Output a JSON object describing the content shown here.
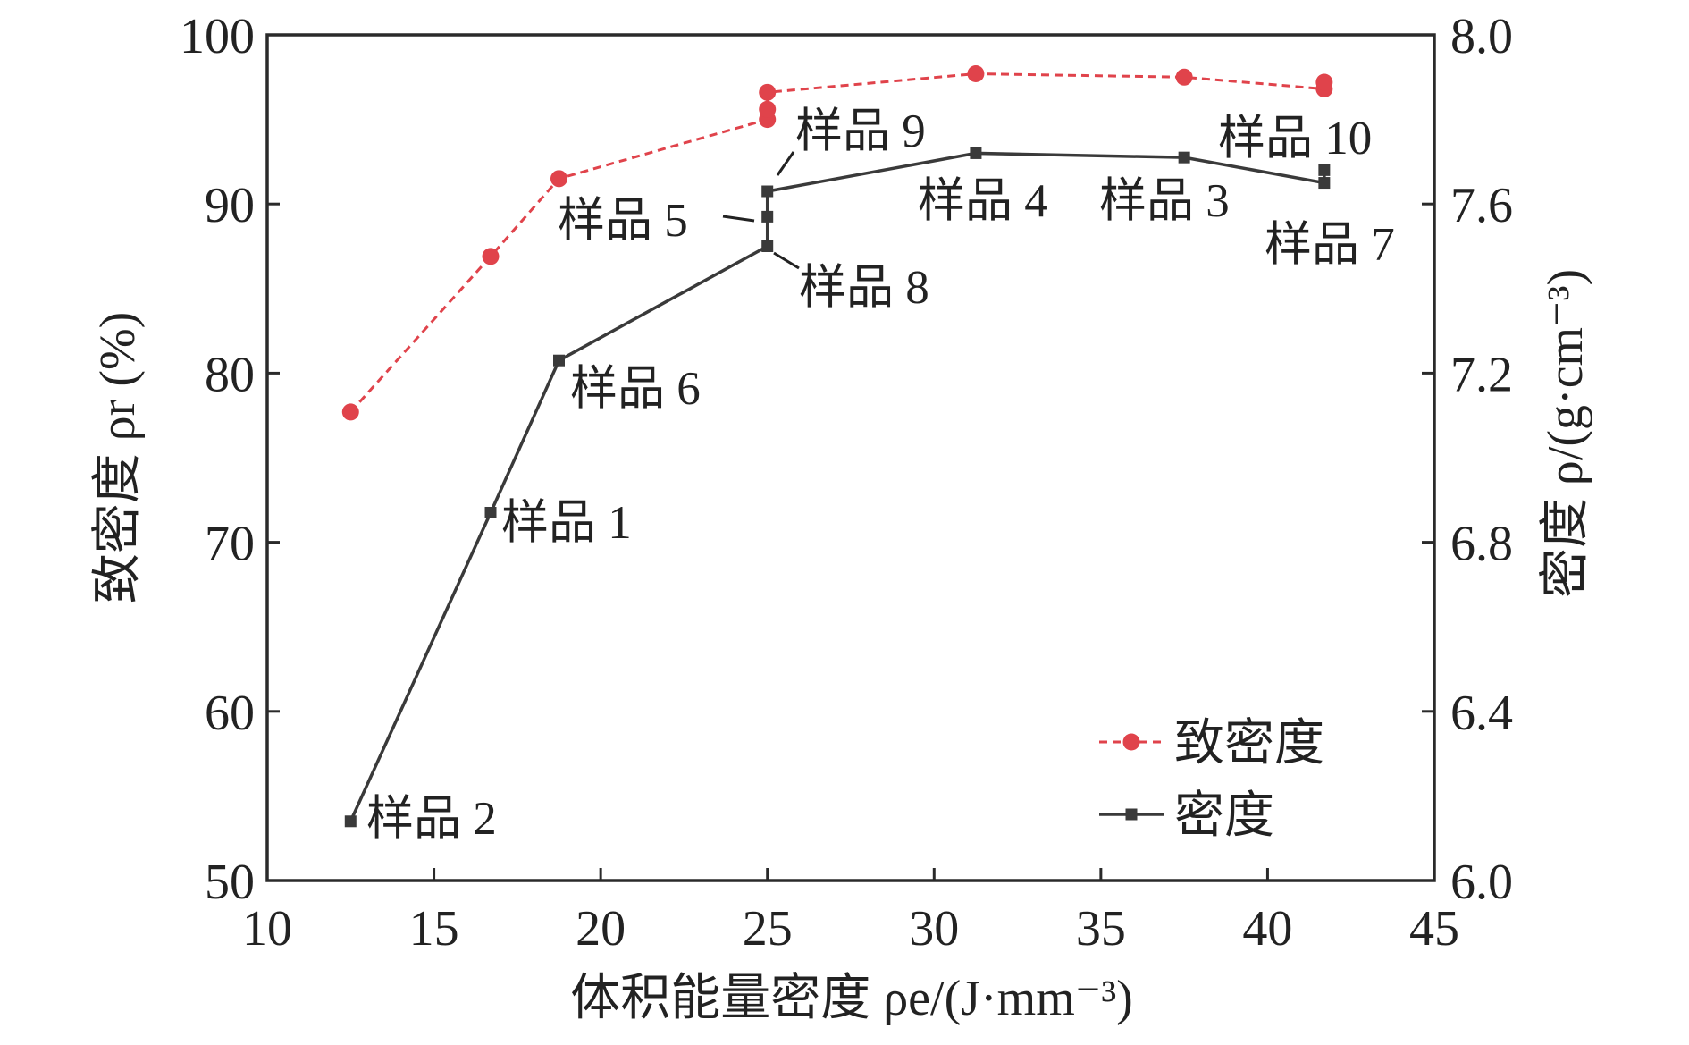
{
  "chart_data": {
    "type": "line",
    "xlabel": "体积能量密度 ρe/(J·mm⁻³)",
    "ylabel_left": "致密度 ρr (%)",
    "ylabel_right": "密度 ρ/(g·cm⁻³)",
    "xlim": [
      10,
      45
    ],
    "ylim_left": [
      50,
      100
    ],
    "ylim_right": [
      6.0,
      8.0
    ],
    "x_ticks": [
      "10",
      "15",
      "20",
      "25",
      "30",
      "35",
      "40",
      "45"
    ],
    "y_left_ticks": [
      "50",
      "60",
      "70",
      "80",
      "90",
      "100"
    ],
    "y_right_ticks": [
      "6.0",
      "6.4",
      "6.8",
      "7.2",
      "7.6",
      "8.0"
    ],
    "legend_position": "bottom-right",
    "colors": {
      "relative_density": "#e0434b",
      "density": "#3a3a3a"
    },
    "series": [
      {
        "name": "致密度",
        "axis": "left",
        "style": "dashed-circle",
        "points": [
          [
            12.5,
            77.7
          ],
          [
            16.7,
            86.9
          ],
          [
            18.75,
            91.5
          ],
          [
            25,
            95.0
          ],
          [
            25,
            95.6
          ],
          [
            25,
            96.6
          ],
          [
            31.25,
            97.7
          ],
          [
            37.5,
            97.5
          ],
          [
            41.7,
            96.8
          ],
          [
            41.7,
            97.2
          ]
        ]
      },
      {
        "name": "密度",
        "axis": "right",
        "style": "solid-square",
        "points": [
          [
            12.5,
            6.14
          ],
          [
            16.7,
            6.87
          ],
          [
            18.75,
            7.23
          ],
          [
            25,
            7.5
          ],
          [
            25,
            7.57
          ],
          [
            25,
            7.63
          ],
          [
            31.25,
            7.72
          ],
          [
            37.5,
            7.71
          ],
          [
            41.7,
            7.65
          ],
          [
            41.7,
            7.68
          ]
        ],
        "line_order": [
          0,
          1,
          2,
          3,
          4,
          5,
          6,
          7,
          8
        ]
      }
    ],
    "annotations": [
      "样品 2",
      "样品 1",
      "样品 6",
      "样品 8",
      "样品 5",
      "样品 9",
      "样品 4",
      "样品 3",
      "样品 7",
      "样品 10"
    ]
  }
}
